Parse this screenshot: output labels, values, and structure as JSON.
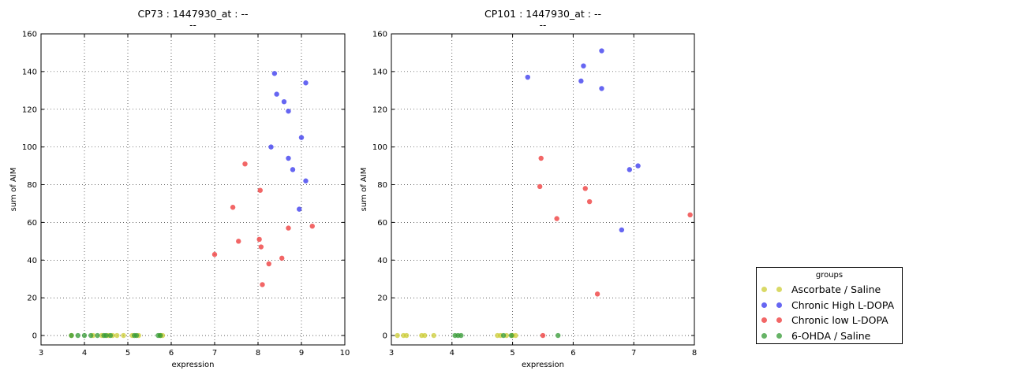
{
  "chart_data": [
    {
      "type": "scatter",
      "title": "CP73 : 1447930_at : --",
      "subtitle": "--",
      "xlabel": "expression",
      "ylabel": "sum of AIM",
      "xlim": [
        3,
        10
      ],
      "ylim": [
        -5,
        160
      ],
      "xticks": [
        "3",
        "4",
        "5",
        "6",
        "7",
        "8",
        "9",
        "10"
      ],
      "yticks": [
        "0",
        "20",
        "40",
        "60",
        "80",
        "100",
        "120",
        "140",
        "160"
      ],
      "grid": true,
      "series": [
        {
          "name": "Ascorbate / Saline",
          "color": "#cccc33",
          "points": [
            [
              3.7,
              0
            ],
            [
              4.2,
              0
            ],
            [
              4.4,
              0
            ],
            [
              4.55,
              0
            ],
            [
              4.75,
              0
            ],
            [
              4.9,
              0
            ],
            [
              5.1,
              0
            ],
            [
              5.25,
              0
            ],
            [
              5.75,
              0
            ],
            [
              5.8,
              0
            ],
            [
              4.65,
              0
            ]
          ]
        },
        {
          "name": "Chronic High L-DOPA",
          "color": "#3333ee",
          "points": [
            [
              8.38,
              139
            ],
            [
              8.43,
              128
            ],
            [
              8.6,
              124
            ],
            [
              8.7,
              119
            ],
            [
              8.3,
              100
            ],
            [
              9.0,
              105
            ],
            [
              9.1,
              134
            ],
            [
              8.7,
              94
            ],
            [
              8.8,
              88
            ],
            [
              9.1,
              82
            ],
            [
              8.95,
              67
            ]
          ]
        },
        {
          "name": "Chronic low L-DOPA",
          "color": "#ee3333",
          "points": [
            [
              7.7,
              91
            ],
            [
              8.05,
              77
            ],
            [
              7.42,
              68
            ],
            [
              8.7,
              57
            ],
            [
              9.25,
              58
            ],
            [
              7.55,
              50
            ],
            [
              8.03,
              51
            ],
            [
              8.07,
              47
            ],
            [
              7.0,
              43
            ],
            [
              8.55,
              41
            ],
            [
              8.25,
              38
            ],
            [
              8.1,
              27
            ]
          ]
        },
        {
          "name": "6-OHDA / Saline",
          "color": "#339933",
          "points": [
            [
              3.7,
              0
            ],
            [
              3.85,
              0
            ],
            [
              4.0,
              0
            ],
            [
              4.15,
              0
            ],
            [
              4.3,
              0
            ],
            [
              4.45,
              0
            ],
            [
              4.5,
              0
            ],
            [
              4.6,
              0
            ],
            [
              5.15,
              0
            ],
            [
              5.2,
              0
            ],
            [
              5.7,
              0
            ],
            [
              5.75,
              0
            ]
          ]
        }
      ]
    },
    {
      "type": "scatter",
      "title": "CP101 : 1447930_at : --",
      "subtitle": "--",
      "xlabel": "expression",
      "ylabel": "sum of AIM",
      "xlim": [
        3,
        8
      ],
      "ylim": [
        -5,
        160
      ],
      "xticks": [
        "3",
        "4",
        "5",
        "6",
        "7",
        "8"
      ],
      "yticks": [
        "0",
        "20",
        "40",
        "60",
        "80",
        "100",
        "120",
        "140",
        "160"
      ],
      "grid": true,
      "series": [
        {
          "name": "Ascorbate / Saline",
          "color": "#cccc33",
          "points": [
            [
              3.1,
              0
            ],
            [
              3.2,
              0
            ],
            [
              3.25,
              0
            ],
            [
              3.5,
              0
            ],
            [
              3.55,
              0
            ],
            [
              3.7,
              0
            ],
            [
              4.75,
              0
            ],
            [
              4.8,
              0
            ],
            [
              4.9,
              0
            ],
            [
              5.0,
              0
            ],
            [
              5.05,
              0
            ]
          ]
        },
        {
          "name": "Chronic High L-DOPA",
          "color": "#3333ee",
          "points": [
            [
              6.47,
              151
            ],
            [
              6.17,
              143
            ],
            [
              5.25,
              137
            ],
            [
              6.13,
              135
            ],
            [
              6.47,
              131
            ],
            [
              6.93,
              88
            ],
            [
              7.07,
              90
            ],
            [
              6.8,
              56
            ]
          ]
        },
        {
          "name": "Chronic low L-DOPA",
          "color": "#ee3333",
          "points": [
            [
              5.47,
              94
            ],
            [
              5.45,
              79
            ],
            [
              6.2,
              78
            ],
            [
              6.27,
              71
            ],
            [
              5.73,
              62
            ],
            [
              7.93,
              64
            ],
            [
              6.4,
              22
            ],
            [
              5.5,
              0
            ]
          ]
        },
        {
          "name": "6-OHDA / Saline",
          "color": "#339933",
          "points": [
            [
              4.05,
              0
            ],
            [
              4.1,
              0
            ],
            [
              4.15,
              0
            ],
            [
              4.85,
              0
            ],
            [
              4.98,
              0
            ],
            [
              5.75,
              0
            ]
          ]
        }
      ]
    }
  ],
  "legend": {
    "title": "groups",
    "items": [
      {
        "label": "Ascorbate / Saline",
        "color": "#cccc33"
      },
      {
        "label": "Chronic High L-DOPA",
        "color": "#3333ee"
      },
      {
        "label": "Chronic low L-DOPA",
        "color": "#ee3333"
      },
      {
        "label": "6-OHDA / Saline",
        "color": "#339933"
      }
    ]
  }
}
